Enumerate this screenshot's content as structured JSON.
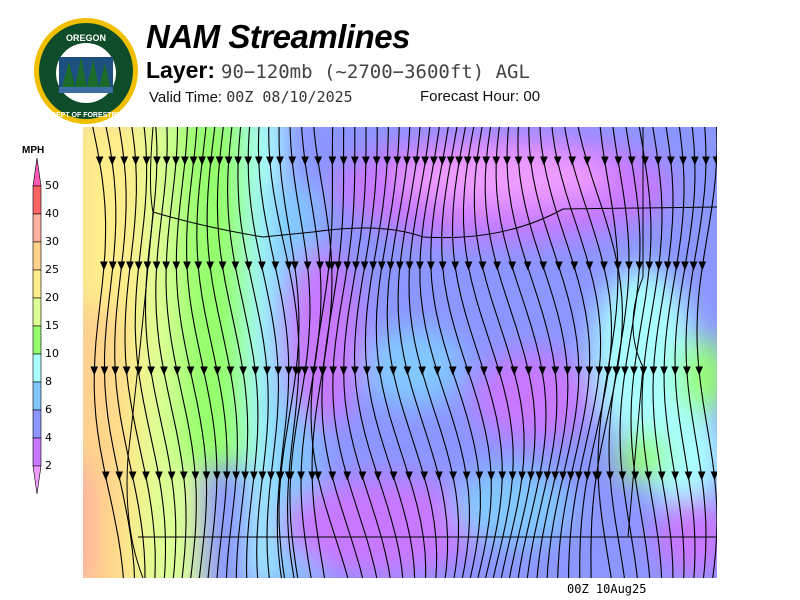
{
  "logo": {
    "text_top": "OREGON",
    "text_bottom": "DEPARTMENT OF FORESTRY"
  },
  "header": {
    "title": "NAM Streamlines",
    "layer_label": "Layer:",
    "layer_value": "90−120mb (~2700−3600ft) AGL",
    "valid_label": "Valid Time:",
    "valid_value": "00Z 08/10/2025",
    "forecast_label": "Forecast Hour:",
    "forecast_value": "00"
  },
  "colorbar": {
    "unit": "MPH",
    "bands": [
      {
        "label": "50",
        "color": "#ff5ab4"
      },
      {
        "label": "40",
        "color": "#ff6464"
      },
      {
        "label": "30",
        "color": "#ffb0a0"
      },
      {
        "label": "25",
        "color": "#ffd38c"
      },
      {
        "label": "20",
        "color": "#ffec8a"
      },
      {
        "label": "15",
        "color": "#dcff96"
      },
      {
        "label": "10",
        "color": "#96ff6e"
      },
      {
        "label": "8",
        "color": "#aaffff"
      },
      {
        "label": "6",
        "color": "#82c8ff"
      },
      {
        "label": "4",
        "color": "#8c96ff"
      },
      {
        "label": "2",
        "color": "#c878ff"
      }
    ],
    "below_min_color": "#ee9cff"
  },
  "footer": {
    "timestamp": "00Z 10Aug25"
  }
}
